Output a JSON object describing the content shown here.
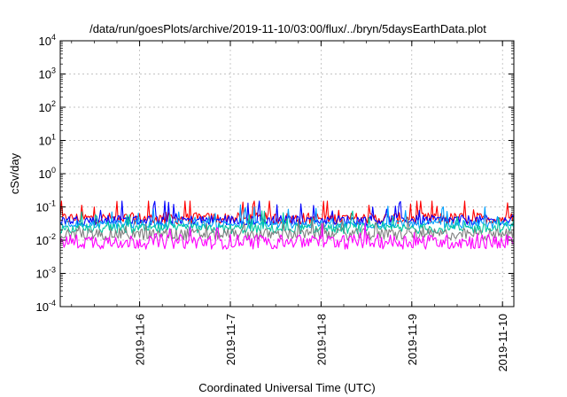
{
  "chart_data": {
    "type": "line",
    "title": "/data/run/goesPlots/archive/2019-11-10/03:00/flux/../bryn/5daysEarthData.plot",
    "xlabel": "Coordinated Universal Time (UTC)",
    "ylabel": "cSv/day",
    "yscale": "log",
    "ylim": [
      0.0001,
      10000
    ],
    "xlim": [
      "2019-11-05T03:00",
      "2019-11-10T03:00"
    ],
    "grid": true,
    "y_ticks": [
      {
        "value": 0.0001,
        "base": "10",
        "exp": "-4"
      },
      {
        "value": 0.001,
        "base": "10",
        "exp": "-3"
      },
      {
        "value": 0.01,
        "base": "10",
        "exp": "-2"
      },
      {
        "value": 0.1,
        "base": "10",
        "exp": "-1"
      },
      {
        "value": 1,
        "base": "10",
        "exp": "0"
      },
      {
        "value": 10,
        "base": "10",
        "exp": "1"
      },
      {
        "value": 100,
        "base": "10",
        "exp": "2"
      },
      {
        "value": 1000,
        "base": "10",
        "exp": "3"
      },
      {
        "value": 10000,
        "base": "10",
        "exp": "4"
      }
    ],
    "x_ticks": [
      {
        "value": "2019-11-06T00:00",
        "label": "2019-11-6"
      },
      {
        "value": "2019-11-07T00:00",
        "label": "2019-11-7"
      },
      {
        "value": "2019-11-08T00:00",
        "label": "2019-11-8"
      },
      {
        "value": "2019-11-09T00:00",
        "label": "2019-11-9"
      },
      {
        "value": "2019-11-10T00:00",
        "label": "2019-11-10"
      }
    ],
    "series": [
      {
        "color": "#ff0000",
        "base": 0.045,
        "spread": 0.35,
        "spike": 0.08
      },
      {
        "color": "#0000ff",
        "base": 0.04,
        "spread": 0.3,
        "spike": 0.07
      },
      {
        "color": "#00a0ff",
        "base": 0.03,
        "spread": 0.25,
        "spike": 0.06
      },
      {
        "color": "#00c8a0",
        "base": 0.022,
        "spread": 0.3,
        "spike": 0.05
      },
      {
        "color": "#808080",
        "base": 0.015,
        "spread": 0.35,
        "spike": 0.04
      },
      {
        "color": "#ff00ff",
        "base": 0.009,
        "spread": 0.45,
        "spike": 0.035
      }
    ]
  }
}
